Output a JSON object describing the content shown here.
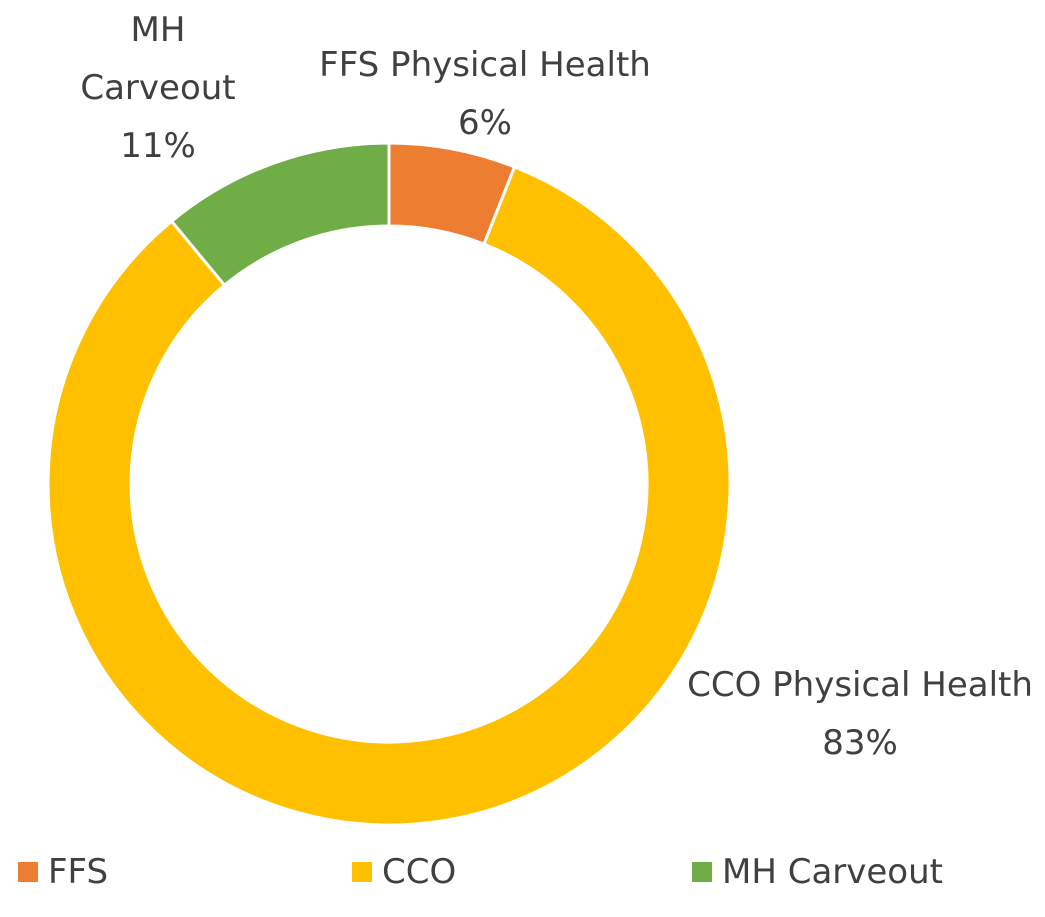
{
  "chart_data": {
    "type": "donut",
    "categories": [
      "FFS",
      "CCO",
      "MH Carveout"
    ],
    "labels": [
      "FFS Physical Health",
      "CCO Physical Health",
      "MH Carveout"
    ],
    "values": [
      6,
      83,
      11
    ],
    "value_labels": [
      "6%",
      "83%",
      "11%"
    ],
    "colors": [
      "#ED7D31",
      "#FFC000",
      "#70AD47"
    ],
    "legend": "bottom"
  }
}
